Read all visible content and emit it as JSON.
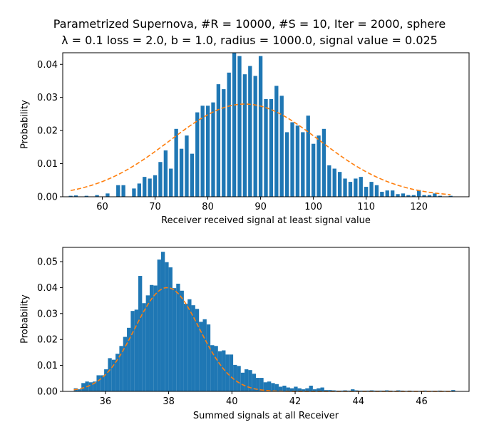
{
  "chart_data": [
    {
      "type": "bar",
      "title_line1": "Parametrized Supernova, #R = 10000, #S = 10, Iter = 2000, sphere",
      "title_line2": "λ = 0.1 loss = 2.0, b = 1.0, radius = 1000.0, signal value = 0.025",
      "xlabel": "Receiver received signal at least signal value",
      "ylabel": "Probability",
      "xlim": [
        52.5,
        129.5
      ],
      "ylim": [
        0,
        0.0435
      ],
      "xticks": [
        60,
        70,
        80,
        90,
        100,
        110,
        120
      ],
      "yticks": [
        0.0,
        0.01,
        0.02,
        0.03,
        0.04
      ],
      "ytick_format": 2,
      "bin_width": 0.72,
      "bar_color": "#1f77b4",
      "bars_x": [
        54,
        55,
        57,
        59,
        61,
        63,
        64,
        66,
        67,
        68,
        69,
        70,
        71,
        72,
        73,
        74,
        75,
        76,
        77,
        78,
        79,
        80,
        81,
        82,
        83,
        84,
        85,
        86,
        87,
        88,
        89,
        90,
        91,
        92,
        93,
        94,
        95,
        96,
        97,
        98,
        99,
        100,
        101,
        102,
        103,
        104,
        105,
        106,
        107,
        108,
        109,
        110,
        111,
        112,
        113,
        114,
        115,
        116,
        117,
        118,
        119,
        120,
        121,
        122,
        123,
        124,
        126
      ],
      "bars_y": [
        0.0003,
        0.0004,
        0.0003,
        0.0005,
        0.001,
        0.0035,
        0.0035,
        0.0025,
        0.004,
        0.006,
        0.0055,
        0.0065,
        0.0105,
        0.014,
        0.0085,
        0.0205,
        0.0145,
        0.0185,
        0.013,
        0.0255,
        0.0275,
        0.0275,
        0.0285,
        0.034,
        0.0325,
        0.0375,
        0.0435,
        0.0425,
        0.037,
        0.0395,
        0.0365,
        0.0425,
        0.0295,
        0.0295,
        0.0335,
        0.0305,
        0.0195,
        0.0225,
        0.0215,
        0.0195,
        0.0245,
        0.016,
        0.0185,
        0.0205,
        0.0095,
        0.0085,
        0.0075,
        0.0055,
        0.0045,
        0.0055,
        0.006,
        0.003,
        0.0045,
        0.0035,
        0.0015,
        0.0019,
        0.0019,
        0.0008,
        0.001,
        0.0005,
        0.0005,
        0.002,
        0.0005,
        0.0005,
        0.001,
        0.0003,
        0.0003
      ],
      "fit": {
        "type": "gaussian",
        "mean": 87,
        "std": 14.2,
        "peak": 0.028,
        "x_range": [
          54,
          126
        ],
        "color": "#ff7f0e",
        "style": "dashed"
      }
    },
    {
      "type": "bar",
      "xlabel": "Summed signals at all Receiver",
      "ylabel": "Probability",
      "xlim": [
        34.65,
        47.5
      ],
      "ylim": [
        0,
        0.0555
      ],
      "xticks": [
        36,
        38,
        40,
        42,
        44,
        46
      ],
      "yticks": [
        0.0,
        0.01,
        0.02,
        0.03,
        0.04,
        0.05
      ],
      "ytick_format": 2,
      "bar_color": "#1f77b4",
      "hist_x0": 35.0,
      "hist_bin_width": 0.12,
      "hist_values": [
        0.0012,
        0.0008,
        0.0032,
        0.0038,
        0.0035,
        0.0038,
        0.0062,
        0.0062,
        0.0085,
        0.0128,
        0.0122,
        0.0145,
        0.0175,
        0.021,
        0.0245,
        0.031,
        0.0315,
        0.0445,
        0.034,
        0.037,
        0.041,
        0.0408,
        0.0508,
        0.0538,
        0.0498,
        0.0478,
        0.0398,
        0.0415,
        0.0388,
        0.0338,
        0.0355,
        0.0332,
        0.0318,
        0.0268,
        0.0278,
        0.0258,
        0.0178,
        0.0175,
        0.0155,
        0.0158,
        0.0142,
        0.0142,
        0.0102,
        0.0098,
        0.0072,
        0.0085,
        0.0082,
        0.0068,
        0.0052,
        0.0052,
        0.0035,
        0.0038,
        0.0032,
        0.0028,
        0.0018,
        0.0022,
        0.0015,
        0.0012,
        0.0018,
        0.0012,
        0.0008,
        0.0012,
        0.0022,
        0.0008,
        0.0012,
        0.0015,
        0.0005,
        0.0005,
        0.0004,
        0.0003,
        0.0003,
        0.0004,
        0.0003,
        0.0008,
        0.0004,
        0.0003,
        0.0003,
        0.0003,
        0.0004,
        0.0003,
        0.0003,
        0.0003,
        0.0004,
        0.0003,
        0.0002,
        0.0004,
        0.0003,
        0.0002,
        0.0003,
        0.0002,
        0.0002,
        0.0002,
        0.0003,
        0.0002,
        0.0002,
        0.0002,
        0.0003,
        0.0002,
        0.0002,
        0.0002
      ],
      "sparse_bars": [
        {
          "x": 45.2,
          "y": 0.0002
        },
        {
          "x": 46.4,
          "y": 0.0002
        },
        {
          "x": 47.0,
          "y": 0.0005
        }
      ],
      "fit": {
        "type": "gaussian",
        "mean": 37.95,
        "std": 1.02,
        "peak": 0.04,
        "x_range": [
          35.0,
          47.0
        ],
        "color": "#ff7f0e",
        "style": "dashed"
      }
    }
  ]
}
